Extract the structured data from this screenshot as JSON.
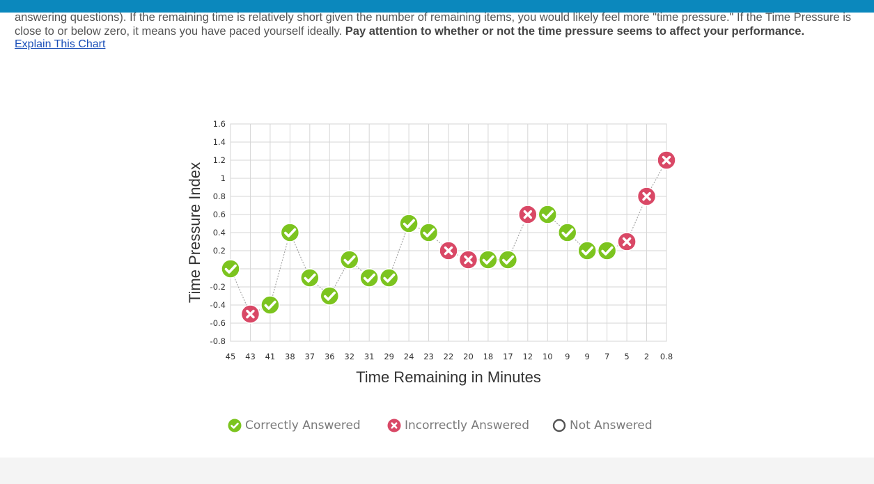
{
  "intro": {
    "text": "answering questions). If the remaining time is relatively short given the number of remaining items, you would likely feel more \"time pressure.\" If the Time Pressure is close to or below zero, it means you have paced yourself ideally.",
    "bold": "Pay attention to whether or not the time pressure seems to affect your performance."
  },
  "link": {
    "explain": "Explain This Chart"
  },
  "colors": {
    "correct": "#7cc41f",
    "incorrect": "#d94866",
    "topbar": "#0b88bd",
    "link": "#1a4fb8"
  },
  "chart_data": {
    "type": "scatter",
    "connected": true,
    "xlabel": "Time Remaining in Minutes",
    "ylabel": "Time Pressure Index",
    "ylim": [
      -0.8,
      1.6
    ],
    "yticks": [
      -0.8,
      -0.6,
      -0.4,
      -0.2,
      0,
      0.2,
      0.4,
      0.6,
      0.8,
      1,
      1.2,
      1.4,
      1.6
    ],
    "ytick_labels": [
      "-0.8",
      "-0.6",
      "-0.4",
      "-0.2",
      "0",
      "0.2",
      "0.4",
      "0.6",
      "0.8",
      "1",
      "1.2",
      "1.4",
      "1.6"
    ],
    "grid": true,
    "categories": [
      "45",
      "43",
      "41",
      "38",
      "37",
      "36",
      "32",
      "31",
      "29",
      "24",
      "23",
      "22",
      "20",
      "18",
      "17",
      "12",
      "10",
      "9",
      "9",
      "7",
      "5",
      "2",
      "0.8"
    ],
    "values": [
      0,
      -0.5,
      -0.4,
      0.4,
      -0.1,
      -0.3,
      0.1,
      -0.1,
      -0.1,
      0.5,
      0.4,
      0.2,
      0.1,
      0.1,
      0.1,
      0.6,
      0.6,
      0.4,
      0.2,
      0.2,
      0.3,
      0.8,
      1.2
    ],
    "status": [
      "correct",
      "incorrect",
      "correct",
      "correct",
      "correct",
      "correct",
      "correct",
      "correct",
      "correct",
      "correct",
      "correct",
      "incorrect",
      "incorrect",
      "correct",
      "correct",
      "incorrect",
      "correct",
      "correct",
      "correct",
      "correct",
      "incorrect",
      "incorrect",
      "incorrect"
    ],
    "legend": [
      {
        "key": "correct",
        "label": "Correctly Answered"
      },
      {
        "key": "incorrect",
        "label": "Incorrectly Answered"
      },
      {
        "key": "not_answered",
        "label": "Not Answered"
      }
    ]
  }
}
